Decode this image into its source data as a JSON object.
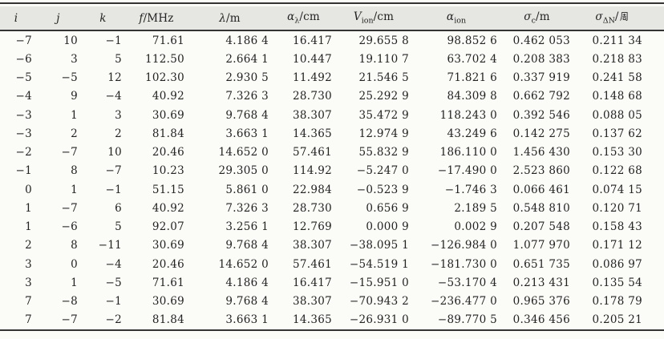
{
  "table": {
    "header": [
      {
        "base": "i",
        "sub": "",
        "unit": ""
      },
      {
        "base": "j",
        "sub": "",
        "unit": ""
      },
      {
        "base": "k",
        "sub": "",
        "unit": ""
      },
      {
        "base": "f",
        "sub": "",
        "unit": "/MHz"
      },
      {
        "base": "λ",
        "sub": "",
        "unit": "/m"
      },
      {
        "base": "α",
        "sub": "λ",
        "unit": "/cm"
      },
      {
        "base": "V",
        "sub": "ion",
        "unit": "/cm"
      },
      {
        "base": "α",
        "sub": "ion",
        "unit": ""
      },
      {
        "base": "σ",
        "sub": "c",
        "unit": "/m"
      },
      {
        "base": "σ",
        "sub": "ΔN",
        "unit": "/",
        "unit_cjk": "周"
      }
    ],
    "rows": [
      [
        "−7",
        "10",
        "−1",
        "71.61",
        "4.186 4",
        "16.417",
        "29.655 8",
        "98.852 6",
        "0.462 053",
        "0.211 34"
      ],
      [
        "−6",
        "3",
        "5",
        "112.50",
        "2.664 1",
        "10.447",
        "19.110 7",
        "63.702 4",
        "0.208 383",
        "0.218 83"
      ],
      [
        "−5",
        "−5",
        "12",
        "102.30",
        "2.930 5",
        "11.492",
        "21.546 5",
        "71.821 6",
        "0.337 919",
        "0.241 58"
      ],
      [
        "−4",
        "9",
        "−4",
        "40.92",
        "7.326 3",
        "28.730",
        "25.292 9",
        "84.309 8",
        "0.662 792",
        "0.148 68"
      ],
      [
        "−3",
        "1",
        "3",
        "30.69",
        "9.768 4",
        "38.307",
        "35.472 9",
        "118.243 0",
        "0.392 546",
        "0.088 05"
      ],
      [
        "−3",
        "2",
        "2",
        "81.84",
        "3.663 1",
        "14.365",
        "12.974 9",
        "43.249 6",
        "0.142 275",
        "0.137 62"
      ],
      [
        "−2",
        "−7",
        "10",
        "20.46",
        "14.652 0",
        "57.461",
        "55.832 9",
        "186.110 0",
        "1.456 430",
        "0.153 30"
      ],
      [
        "−1",
        "8",
        "−7",
        "10.23",
        "29.305 0",
        "114.92",
        "−5.247 0",
        "−17.490 0",
        "2.523 860",
        "0.122 68"
      ],
      [
        "0",
        "1",
        "−1",
        "51.15",
        "5.861 0",
        "22.984",
        "−0.523 9",
        "−1.746 3",
        "0.066 461",
        "0.074 15"
      ],
      [
        "1",
        "−7",
        "6",
        "40.92",
        "7.326 3",
        "28.730",
        "0.656 9",
        "2.189 5",
        "0.548 810",
        "0.120 71"
      ],
      [
        "1",
        "−6",
        "5",
        "92.07",
        "3.256 1",
        "12.769",
        "0.000 9",
        "0.002 9",
        "0.207 548",
        "0.158 43"
      ],
      [
        "2",
        "8",
        "−11",
        "30.69",
        "9.768 4",
        "38.307",
        "−38.095 1",
        "−126.984 0",
        "1.077 970",
        "0.171 12"
      ],
      [
        "3",
        "0",
        "−4",
        "20.46",
        "14.652 0",
        "57.461",
        "−54.519 1",
        "−181.730 0",
        "0.651 735",
        "0.086 97"
      ],
      [
        "3",
        "1",
        "−5",
        "71.61",
        "4.186 4",
        "16.417",
        "−15.951 0",
        "−53.170 4",
        "0.213 431",
        "0.135 54"
      ],
      [
        "7",
        "−8",
        "−1",
        "30.69",
        "9.768 4",
        "38.307",
        "−70.943 2",
        "−236.477 0",
        "0.965 376",
        "0.178 79"
      ],
      [
        "7",
        "−7",
        "−2",
        "81.84",
        "3.663 1",
        "14.365",
        "−26.931 0",
        "−89.770 5",
        "0.346 456",
        "0.205 21"
      ]
    ]
  },
  "colors": {
    "header_bg": "#e6e6e2",
    "rule": "#343434",
    "text": "#232323",
    "paper_bg": "#fbfbf8"
  },
  "chart_data": {
    "type": "table",
    "columns": [
      "i",
      "j",
      "k",
      "f/MHz",
      "λ/m",
      "α_λ/cm",
      "V_ion/cm",
      "α_ion",
      "σ_c/m",
      "σ_ΔN/周"
    ]
  }
}
